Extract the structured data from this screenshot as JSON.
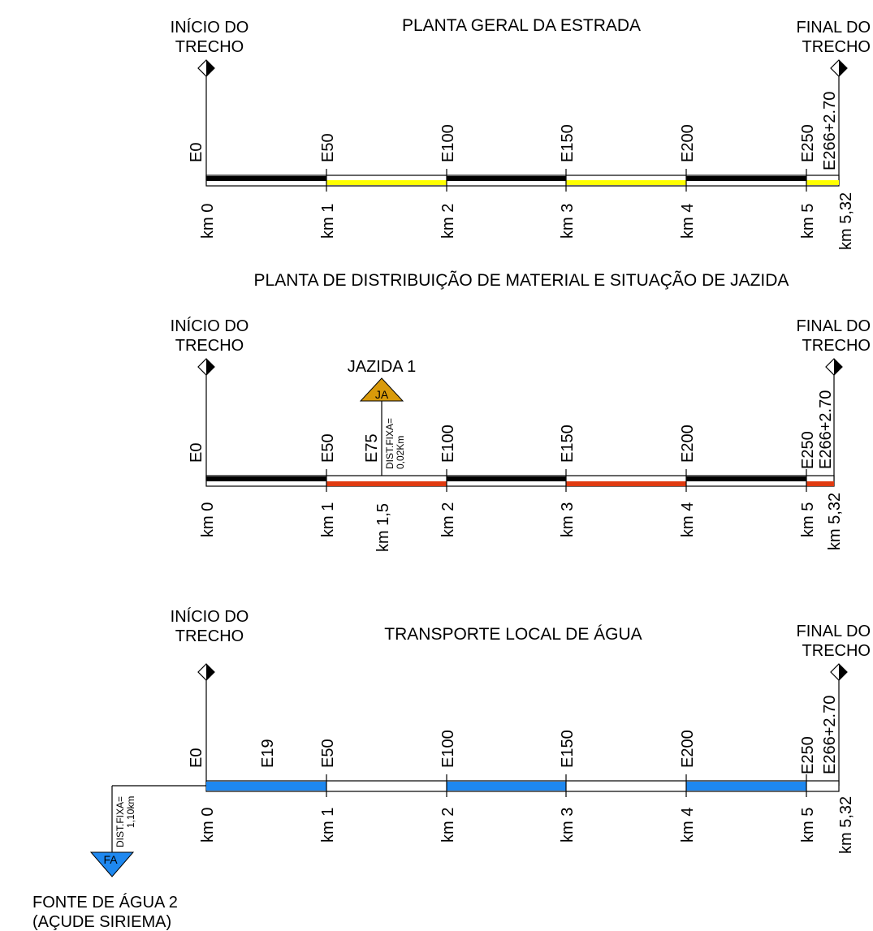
{
  "colors": {
    "black_segment": "#000000",
    "yellow_segment": "#ffff00",
    "red_segment": "#e03a10",
    "blue_segment": "#1e88f0",
    "jazida_marker": "#d99a0a",
    "water_marker": "#1e88f0",
    "line": "#000000"
  },
  "section1": {
    "title": "PLANTA GERAL DA ESTRADA",
    "start_label": [
      "INÍCIO DO",
      "TRECHO"
    ],
    "end_label": [
      "FINAL DO",
      "TRECHO"
    ],
    "stations": [
      "E0",
      "E50",
      "E100",
      "E150",
      "E200",
      "E250",
      "E266+2.70"
    ],
    "kms": [
      "km 0",
      "km 1",
      "km 2",
      "km 3",
      "km 4",
      "km 5",
      "km 5,32"
    ],
    "segments": [
      "black",
      "yellow",
      "black",
      "yellow",
      "black",
      "yellow"
    ]
  },
  "section2": {
    "title": "PLANTA DE DISTRIBUIÇÃO DE MATERIAL E SITUAÇÃO DE JAZIDA",
    "start_label": [
      "INÍCIO DO",
      "TRECHO"
    ],
    "end_label": [
      "FINAL DO",
      "TRECHO"
    ],
    "stations": [
      "E0",
      "E50",
      "E75",
      "E100",
      "E150",
      "E200",
      "E250",
      "E266+2.70"
    ],
    "kms": [
      "km 0",
      "km 1",
      "km 1,5",
      "km 2",
      "km 3",
      "km 4",
      "km 5",
      "km 5,32"
    ],
    "segments": [
      "black",
      "red",
      "black",
      "red",
      "black",
      "red"
    ],
    "jazida": {
      "name": "JAZIDA 1",
      "code": "JA",
      "dist_line1": "DIST.FIXA=",
      "dist_line2": "0,02Km"
    }
  },
  "section3": {
    "title": "TRANSPORTE LOCAL DE ÁGUA",
    "start_label": [
      "INÍCIO DO",
      "TRECHO"
    ],
    "end_label": [
      "FINAL DO",
      "TRECHO"
    ],
    "stations": [
      "E0",
      "E19",
      "E50",
      "E100",
      "E150",
      "E200",
      "E250",
      "E266+2.70"
    ],
    "kms": [
      "km 0",
      "km 1",
      "km 2",
      "km 3",
      "km 4",
      "km 5",
      "km 5,32"
    ],
    "segments": [
      "blue",
      "white",
      "blue",
      "white",
      "blue",
      "white"
    ],
    "fonte": {
      "code": "FA",
      "dist_line1": "DIST.FIXA=",
      "dist_line2": "1,10km",
      "name_line1": "FONTE DE ÁGUA 2",
      "name_line2": "(AÇUDE SIRIEMA)"
    }
  }
}
